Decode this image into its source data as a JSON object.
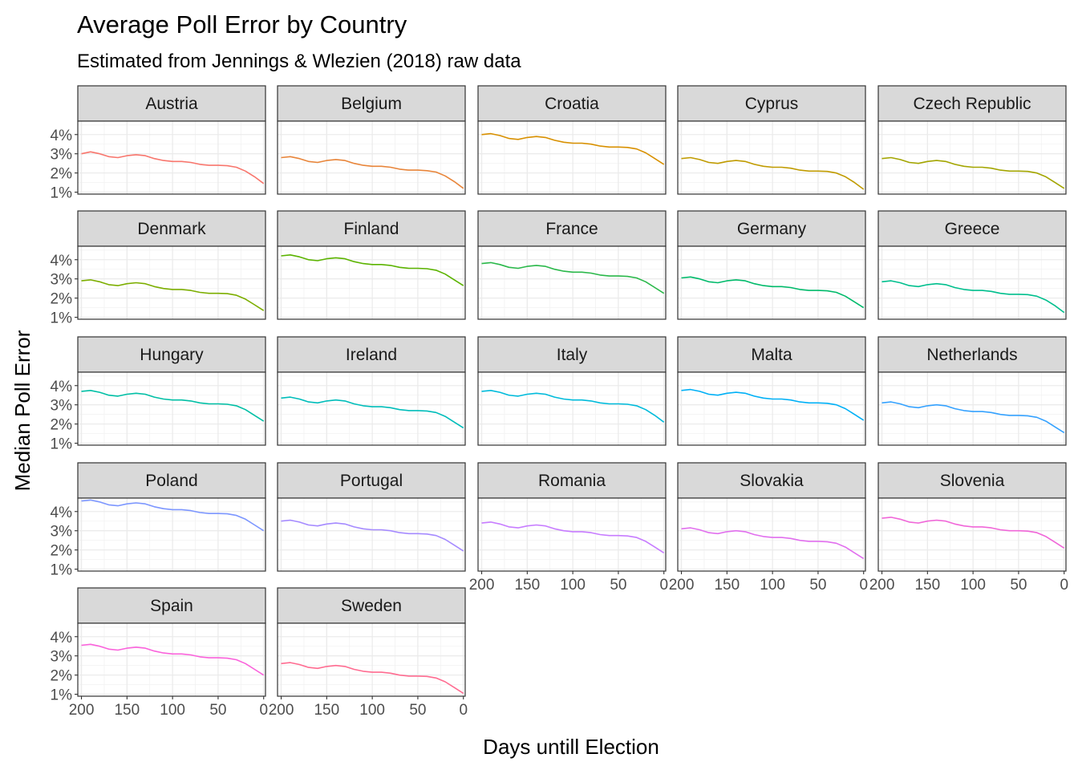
{
  "chart_data": {
    "type": "line",
    "title": "Average Poll Error by Country",
    "subtitle": "Estimated from  Jennings & Wlezien (2018) raw data",
    "xlabel": "Days untill Election",
    "ylabel": "Median Poll Error",
    "x_reversed": true,
    "xlim": [
      204,
      -2
    ],
    "ylim": [
      0.9,
      4.7
    ],
    "x_ticks": [
      200,
      150,
      100,
      50,
      0
    ],
    "x_tick_labels": [
      "200",
      "150",
      "100",
      "50",
      "0"
    ],
    "y_ticks": [
      1,
      2,
      3,
      4
    ],
    "y_tick_labels": [
      "1%",
      "2%",
      "3%",
      "4%"
    ],
    "grid": true,
    "facet_columns": 5,
    "x": [
      200,
      190,
      180,
      170,
      160,
      150,
      140,
      130,
      120,
      110,
      100,
      90,
      80,
      70,
      60,
      50,
      40,
      30,
      20,
      10,
      0
    ],
    "series": [
      {
        "name": "Austria",
        "color": "#F8766D",
        "values": [
          3.0,
          3.1,
          3.0,
          2.85,
          2.8,
          2.9,
          2.95,
          2.9,
          2.75,
          2.65,
          2.6,
          2.6,
          2.55,
          2.45,
          2.4,
          2.4,
          2.38,
          2.3,
          2.1,
          1.8,
          1.45
        ]
      },
      {
        "name": "Belgium",
        "color": "#E8853A",
        "values": [
          2.8,
          2.85,
          2.75,
          2.6,
          2.55,
          2.65,
          2.7,
          2.65,
          2.5,
          2.4,
          2.35,
          2.35,
          2.3,
          2.2,
          2.15,
          2.15,
          2.12,
          2.05,
          1.85,
          1.55,
          1.2
        ]
      },
      {
        "name": "Croatia",
        "color": "#D89000",
        "values": [
          4.0,
          4.05,
          3.95,
          3.8,
          3.75,
          3.85,
          3.9,
          3.85,
          3.7,
          3.6,
          3.55,
          3.55,
          3.5,
          3.4,
          3.35,
          3.35,
          3.33,
          3.25,
          3.05,
          2.75,
          2.45
        ]
      },
      {
        "name": "Cyprus",
        "color": "#C09B00",
        "values": [
          2.75,
          2.8,
          2.7,
          2.55,
          2.5,
          2.6,
          2.65,
          2.6,
          2.45,
          2.35,
          2.3,
          2.3,
          2.25,
          2.15,
          2.1,
          2.1,
          2.08,
          2.0,
          1.8,
          1.5,
          1.15
        ]
      },
      {
        "name": "Czech Republic",
        "color": "#A3A500",
        "values": [
          2.75,
          2.8,
          2.7,
          2.55,
          2.5,
          2.6,
          2.65,
          2.6,
          2.45,
          2.35,
          2.3,
          2.3,
          2.25,
          2.15,
          2.1,
          2.1,
          2.08,
          2.0,
          1.8,
          1.5,
          1.2
        ]
      },
      {
        "name": "Denmark",
        "color": "#7CAE00",
        "values": [
          2.9,
          2.95,
          2.85,
          2.7,
          2.65,
          2.75,
          2.8,
          2.75,
          2.6,
          2.5,
          2.45,
          2.45,
          2.4,
          2.3,
          2.25,
          2.25,
          2.23,
          2.15,
          1.95,
          1.65,
          1.35
        ]
      },
      {
        "name": "Finland",
        "color": "#5BB300",
        "values": [
          4.2,
          4.25,
          4.15,
          4.0,
          3.95,
          4.05,
          4.1,
          4.05,
          3.9,
          3.8,
          3.75,
          3.75,
          3.7,
          3.6,
          3.55,
          3.55,
          3.53,
          3.45,
          3.25,
          2.95,
          2.65
        ]
      },
      {
        "name": "France",
        "color": "#2AB84A",
        "values": [
          3.8,
          3.85,
          3.75,
          3.6,
          3.55,
          3.65,
          3.7,
          3.65,
          3.5,
          3.4,
          3.35,
          3.35,
          3.3,
          3.2,
          3.15,
          3.15,
          3.13,
          3.05,
          2.85,
          2.55,
          2.25
        ]
      },
      {
        "name": "Germany",
        "color": "#00BA6A",
        "values": [
          3.05,
          3.1,
          3.0,
          2.85,
          2.8,
          2.9,
          2.95,
          2.9,
          2.75,
          2.65,
          2.6,
          2.6,
          2.55,
          2.45,
          2.4,
          2.4,
          2.38,
          2.3,
          2.1,
          1.8,
          1.5
        ]
      },
      {
        "name": "Greece",
        "color": "#00BF8D",
        "values": [
          2.85,
          2.9,
          2.8,
          2.65,
          2.6,
          2.7,
          2.75,
          2.7,
          2.55,
          2.45,
          2.4,
          2.4,
          2.35,
          2.25,
          2.2,
          2.2,
          2.18,
          2.1,
          1.9,
          1.6,
          1.25
        ]
      },
      {
        "name": "Hungary",
        "color": "#00BFA5",
        "values": [
          3.7,
          3.75,
          3.65,
          3.5,
          3.45,
          3.55,
          3.6,
          3.55,
          3.4,
          3.3,
          3.25,
          3.25,
          3.2,
          3.1,
          3.05,
          3.05,
          3.03,
          2.95,
          2.75,
          2.45,
          2.15
        ]
      },
      {
        "name": "Ireland",
        "color": "#00BDBA",
        "values": [
          3.35,
          3.4,
          3.3,
          3.15,
          3.1,
          3.2,
          3.25,
          3.2,
          3.05,
          2.95,
          2.9,
          2.9,
          2.85,
          2.75,
          2.7,
          2.7,
          2.68,
          2.6,
          2.4,
          2.1,
          1.8
        ]
      },
      {
        "name": "Italy",
        "color": "#00BBDB",
        "values": [
          3.7,
          3.75,
          3.65,
          3.5,
          3.45,
          3.55,
          3.6,
          3.55,
          3.4,
          3.3,
          3.25,
          3.25,
          3.2,
          3.1,
          3.05,
          3.05,
          3.03,
          2.95,
          2.75,
          2.45,
          2.1
        ]
      },
      {
        "name": "Malta",
        "color": "#00B0F6",
        "values": [
          3.75,
          3.8,
          3.7,
          3.55,
          3.5,
          3.6,
          3.65,
          3.6,
          3.45,
          3.35,
          3.3,
          3.3,
          3.25,
          3.15,
          3.1,
          3.1,
          3.08,
          3.0,
          2.8,
          2.5,
          2.2
        ]
      },
      {
        "name": "Netherlands",
        "color": "#35A2FF",
        "values": [
          3.1,
          3.15,
          3.05,
          2.9,
          2.85,
          2.95,
          3.0,
          2.95,
          2.8,
          2.7,
          2.65,
          2.65,
          2.6,
          2.5,
          2.45,
          2.45,
          2.43,
          2.35,
          2.15,
          1.85,
          1.55
        ]
      },
      {
        "name": "Poland",
        "color": "#7C96FF",
        "values": [
          4.55,
          4.6,
          4.5,
          4.35,
          4.3,
          4.4,
          4.45,
          4.4,
          4.25,
          4.15,
          4.1,
          4.1,
          4.05,
          3.95,
          3.9,
          3.9,
          3.88,
          3.8,
          3.6,
          3.3,
          3.0
        ]
      },
      {
        "name": "Portugal",
        "color": "#A58AFF",
        "values": [
          3.5,
          3.55,
          3.45,
          3.3,
          3.25,
          3.35,
          3.4,
          3.35,
          3.2,
          3.1,
          3.05,
          3.05,
          3.0,
          2.9,
          2.85,
          2.85,
          2.83,
          2.75,
          2.55,
          2.25,
          1.95
        ]
      },
      {
        "name": "Romania",
        "color": "#C77CFF",
        "values": [
          3.4,
          3.45,
          3.35,
          3.2,
          3.15,
          3.25,
          3.3,
          3.25,
          3.1,
          3.0,
          2.95,
          2.95,
          2.9,
          2.8,
          2.75,
          2.75,
          2.73,
          2.65,
          2.45,
          2.15,
          1.85
        ]
      },
      {
        "name": "Slovakia",
        "color": "#E16FEE",
        "values": [
          3.1,
          3.15,
          3.05,
          2.9,
          2.85,
          2.95,
          3.0,
          2.95,
          2.8,
          2.7,
          2.65,
          2.65,
          2.6,
          2.5,
          2.45,
          2.45,
          2.43,
          2.35,
          2.15,
          1.85,
          1.55
        ]
      },
      {
        "name": "Slovenia",
        "color": "#F066D8",
        "values": [
          3.65,
          3.7,
          3.6,
          3.45,
          3.4,
          3.5,
          3.55,
          3.5,
          3.35,
          3.25,
          3.2,
          3.2,
          3.15,
          3.05,
          3.0,
          3.0,
          2.98,
          2.9,
          2.7,
          2.4,
          2.1
        ]
      },
      {
        "name": "Spain",
        "color": "#FA62DB",
        "values": [
          3.55,
          3.6,
          3.5,
          3.35,
          3.3,
          3.4,
          3.45,
          3.4,
          3.25,
          3.15,
          3.1,
          3.1,
          3.05,
          2.95,
          2.9,
          2.9,
          2.88,
          2.8,
          2.6,
          2.3,
          2.0
        ]
      },
      {
        "name": "Sweden",
        "color": "#FF6C91",
        "values": [
          2.6,
          2.65,
          2.55,
          2.4,
          2.35,
          2.45,
          2.5,
          2.45,
          2.3,
          2.2,
          2.15,
          2.15,
          2.1,
          2.0,
          1.95,
          1.95,
          1.93,
          1.85,
          1.65,
          1.35,
          1.05
        ]
      }
    ]
  }
}
